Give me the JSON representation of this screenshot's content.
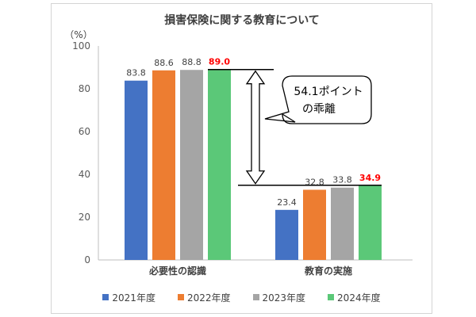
{
  "chart_data": {
    "type": "bar",
    "title": "損害保険に関する教育について",
    "yunit": "（%）",
    "ylim": [
      0,
      100
    ],
    "yticks": [
      0,
      20,
      40,
      60,
      80,
      100
    ],
    "grid": false,
    "legend_position": "bottom",
    "categories": [
      "必要性の認識",
      "教育の実施"
    ],
    "series": [
      {
        "name": "2021年度",
        "color": "#4472C4",
        "values": [
          83.8,
          23.4
        ],
        "label_color": "#404040"
      },
      {
        "name": "2022年度",
        "color": "#ED7D31",
        "values": [
          88.6,
          32.8
        ],
        "label_color": "#404040"
      },
      {
        "name": "2023年度",
        "color": "#A5A5A5",
        "values": [
          88.8,
          33.8
        ],
        "label_color": "#404040"
      },
      {
        "name": "2024年度",
        "color": "#5BC878",
        "values": [
          89.0,
          34.9
        ],
        "label_color": "#FF0000"
      }
    ],
    "value_labels": [
      [
        "83.8",
        "23.4"
      ],
      [
        "88.6",
        "32.8"
      ],
      [
        "88.8",
        "33.8"
      ],
      [
        "89.0",
        "34.9"
      ]
    ],
    "annotation": {
      "line1": "54.1ポイント",
      "line2": "の乖離",
      "from_value": 89.0,
      "to_value": 34.9
    }
  }
}
